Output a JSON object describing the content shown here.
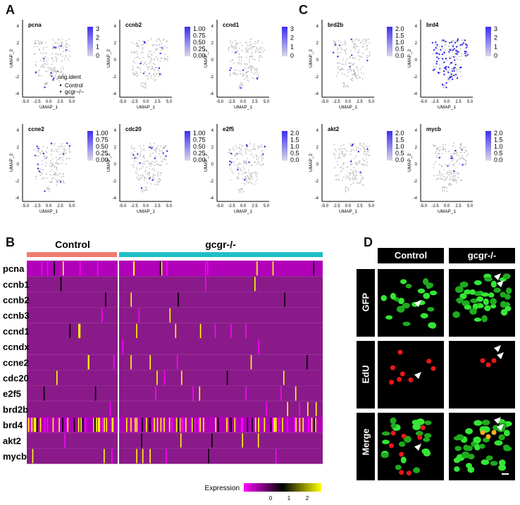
{
  "panels": {
    "A": "A",
    "B": "B",
    "C": "C",
    "D": "D"
  },
  "umap": {
    "x_label": "UMAP_1",
    "y_label": "UMAP_2",
    "x_ticks": [
      "-5.0",
      "-2.5",
      "0.0",
      "2.5",
      "5.0"
    ],
    "y_ticks": [
      "4",
      "2",
      "0",
      "-2",
      "-4"
    ],
    "legend": {
      "title": "orig.ident",
      "items": [
        "Control",
        "gcgr−/−"
      ]
    },
    "plots": [
      {
        "gene": "pcna",
        "scale": [
          "3",
          "2",
          "1",
          "0"
        ]
      },
      {
        "gene": "ccnb2",
        "scale": [
          "1.00",
          "0.75",
          "0.50",
          "0.25",
          "0.00"
        ]
      },
      {
        "gene": "ccnd1",
        "scale": [
          "3",
          "2",
          "1",
          "0"
        ]
      },
      {
        "gene": "ccne2",
        "scale": [
          "1.00",
          "0.75",
          "0.50",
          "0.25",
          "0.00"
        ]
      },
      {
        "gene": "cdc20",
        "scale": [
          "1.00",
          "0.75",
          "0.50",
          "0.25",
          "0.00"
        ]
      },
      {
        "gene": "e2f5",
        "scale": [
          "2.0",
          "1.5",
          "1.0",
          "0.5",
          "0.0"
        ]
      },
      {
        "gene": "brd2b",
        "scale": [
          "2.0",
          "1.5",
          "1.0",
          "0.5",
          "0.0"
        ]
      },
      {
        "gene": "brd4",
        "scale": [
          "3",
          "2",
          "1",
          "0"
        ]
      },
      {
        "gene": "akt2",
        "scale": [
          "2.0",
          "1.5",
          "1.0",
          "0.5",
          "0.0"
        ]
      },
      {
        "gene": "mycb",
        "scale": [
          "2.0",
          "1.5",
          "1.0",
          "0.5",
          "0.0"
        ]
      }
    ]
  },
  "heatmap": {
    "groups": [
      "Control",
      "gcgr-/-"
    ],
    "group_colors": [
      "#f07a70",
      "#1cc0c4"
    ],
    "genes": [
      "pcna",
      "ccnb1",
      "ccnb2",
      "ccnb3",
      "ccnd1",
      "ccndx",
      "ccne2",
      "cdc20",
      "e2f5",
      "brd2b",
      "brd4",
      "akt2",
      "mycb"
    ],
    "legend_title": "Expression",
    "legend_ticks": [
      "0",
      "1",
      "2"
    ],
    "colors": {
      "low": "#ff00ff",
      "mid": "#000000",
      "high": "#ffff00",
      "base": "#8a1a8a"
    }
  },
  "microscopy": {
    "columns": [
      "Control",
      "gcgr-/-"
    ],
    "rows": [
      "GFP",
      "EdU",
      "Merge"
    ]
  }
}
